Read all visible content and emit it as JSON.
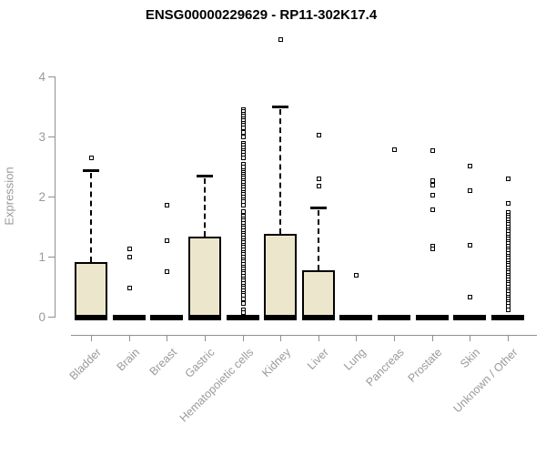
{
  "chart_data": {
    "type": "box",
    "title": "ENSG00000229629 - RP11-302K17.4",
    "xlabel": "",
    "ylabel": "Expression",
    "ylim": [
      0,
      4
    ],
    "yticks": [
      0,
      1,
      2,
      3,
      4
    ],
    "grid": false,
    "legend": "none",
    "colors": {
      "box_fill": "#ece7cc",
      "box_border": "#000000",
      "median": "#000000",
      "axis": "#909090",
      "axis_text": "#9a9a9a",
      "title_text": "#000000"
    },
    "categories": [
      "Bladder",
      "Brain",
      "Breast",
      "Gastric",
      "Hematopoietic cells",
      "Kidney",
      "Liver",
      "Lung",
      "Pancreas",
      "Prostate",
      "Skin",
      "Unknown / Other"
    ],
    "series": [
      {
        "label": "Bladder",
        "q1": 0,
        "median": 0,
        "q3": 0.91,
        "whisker_low": 0,
        "whisker_high": 2.44,
        "outliers": [
          2.65
        ]
      },
      {
        "label": "Brain",
        "q1": 0,
        "median": 0,
        "q3": 0,
        "whisker_low": 0,
        "whisker_high": 0,
        "outliers": [
          1.14,
          1.0,
          0.48
        ]
      },
      {
        "label": "Breast",
        "q1": 0,
        "median": 0,
        "q3": 0,
        "whisker_low": 0,
        "whisker_high": 0,
        "outliers": [
          1.86,
          1.27,
          0.76
        ]
      },
      {
        "label": "Gastric",
        "q1": 0,
        "median": 0,
        "q3": 1.33,
        "whisker_low": 0,
        "whisker_high": 2.35,
        "outliers": []
      },
      {
        "label": "Hematopoietic cells",
        "q1": 0,
        "median": 0,
        "q3": 0,
        "whisker_low": 0,
        "whisker_high": 0,
        "outliers": [
          3.45,
          3.42,
          3.38,
          3.35,
          3.3,
          3.27,
          3.23,
          3.2,
          3.15,
          3.08,
          3.0,
          2.9,
          2.86,
          2.82,
          2.78,
          2.74,
          2.7,
          2.65,
          2.55,
          2.5,
          2.44,
          2.41,
          2.38,
          2.35,
          2.32,
          2.28,
          2.24,
          2.2,
          2.16,
          2.12,
          2.08,
          2.04,
          2.0,
          1.96,
          1.92,
          1.86,
          1.76,
          1.68,
          1.64,
          1.6,
          1.56,
          1.52,
          1.48,
          1.44,
          1.4,
          1.36,
          1.32,
          1.28,
          1.24,
          1.2,
          1.16,
          1.12,
          1.08,
          1.04,
          1.0,
          0.96,
          0.92,
          0.88,
          0.84,
          0.8,
          0.76,
          0.72,
          0.68,
          0.64,
          0.6,
          0.56,
          0.52,
          0.48,
          0.44,
          0.4,
          0.36,
          0.3,
          0.22,
          0.12,
          0.08
        ]
      },
      {
        "label": "Kidney",
        "q1": 0,
        "median": 0,
        "q3": 1.38,
        "whisker_low": 0,
        "whisker_high": 3.5,
        "outliers": [
          4.62
        ]
      },
      {
        "label": "Liver",
        "q1": 0,
        "median": 0,
        "q3": 0.78,
        "whisker_low": 0,
        "whisker_high": 1.82,
        "outliers": [
          3.03,
          2.3,
          2.18
        ]
      },
      {
        "label": "Lung",
        "q1": 0,
        "median": 0,
        "q3": 0,
        "whisker_low": 0,
        "whisker_high": 0,
        "outliers": [
          0.7
        ]
      },
      {
        "label": "Pancreas",
        "q1": 0,
        "median": 0,
        "q3": 0,
        "whisker_low": 0,
        "whisker_high": 0,
        "outliers": [
          2.79
        ]
      },
      {
        "label": "Prostate",
        "q1": 0,
        "median": 0,
        "q3": 0,
        "whisker_low": 0,
        "whisker_high": 0,
        "outliers": [
          2.77,
          2.27,
          2.2,
          2.03,
          1.79,
          1.18,
          1.14
        ]
      },
      {
        "label": "Skin",
        "q1": 0,
        "median": 0,
        "q3": 0,
        "whisker_low": 0,
        "whisker_high": 0,
        "outliers": [
          2.52,
          2.11,
          1.2,
          0.33
        ]
      },
      {
        "label": "Unknown / Other",
        "q1": 0,
        "median": 0,
        "q3": 0,
        "whisker_low": 0,
        "whisker_high": 0,
        "outliers": [
          2.3,
          1.89,
          1.74,
          1.7,
          1.66,
          1.62,
          1.58,
          1.54,
          1.5,
          1.46,
          1.42,
          1.38,
          1.34,
          1.3,
          1.26,
          1.22,
          1.18,
          1.14,
          1.1,
          1.06,
          1.02,
          0.98,
          0.94,
          0.9,
          0.86,
          0.82,
          0.78,
          0.74,
          0.7,
          0.66,
          0.62,
          0.58,
          0.54,
          0.5,
          0.46,
          0.42,
          0.38,
          0.34,
          0.3,
          0.26,
          0.22,
          0.18,
          0.12
        ]
      }
    ]
  }
}
